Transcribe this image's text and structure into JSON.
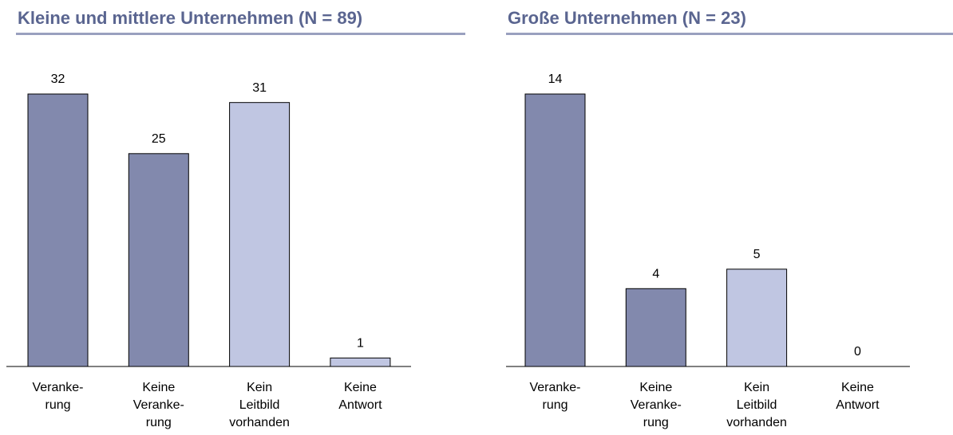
{
  "chart_data": [
    {
      "type": "bar",
      "title": "Kleine und mittlere Unternehmen (N = 89)",
      "categories": [
        "Veranke-\nrung",
        "Keine\nVeranke-\nrung",
        "Kein\nLeitbild\nvorhanden",
        "Keine\nAntwort"
      ],
      "values": [
        32,
        25,
        31,
        1
      ],
      "colors": [
        "#8289ad",
        "#8289ad",
        "#c0c6e2",
        "#c0c6e2"
      ]
    },
    {
      "type": "bar",
      "title": "Große Unternehmen (N = 23)",
      "categories": [
        "Veranke-\nrung",
        "Keine\nVeranke-\nrung",
        "Kein\nLeitbild\nvorhanden",
        "Keine\nAntwort"
      ],
      "values": [
        14,
        4,
        5,
        0
      ],
      "colors": [
        "#8289ad",
        "#8289ad",
        "#c0c6e2",
        "#c0c6e2"
      ]
    }
  ]
}
